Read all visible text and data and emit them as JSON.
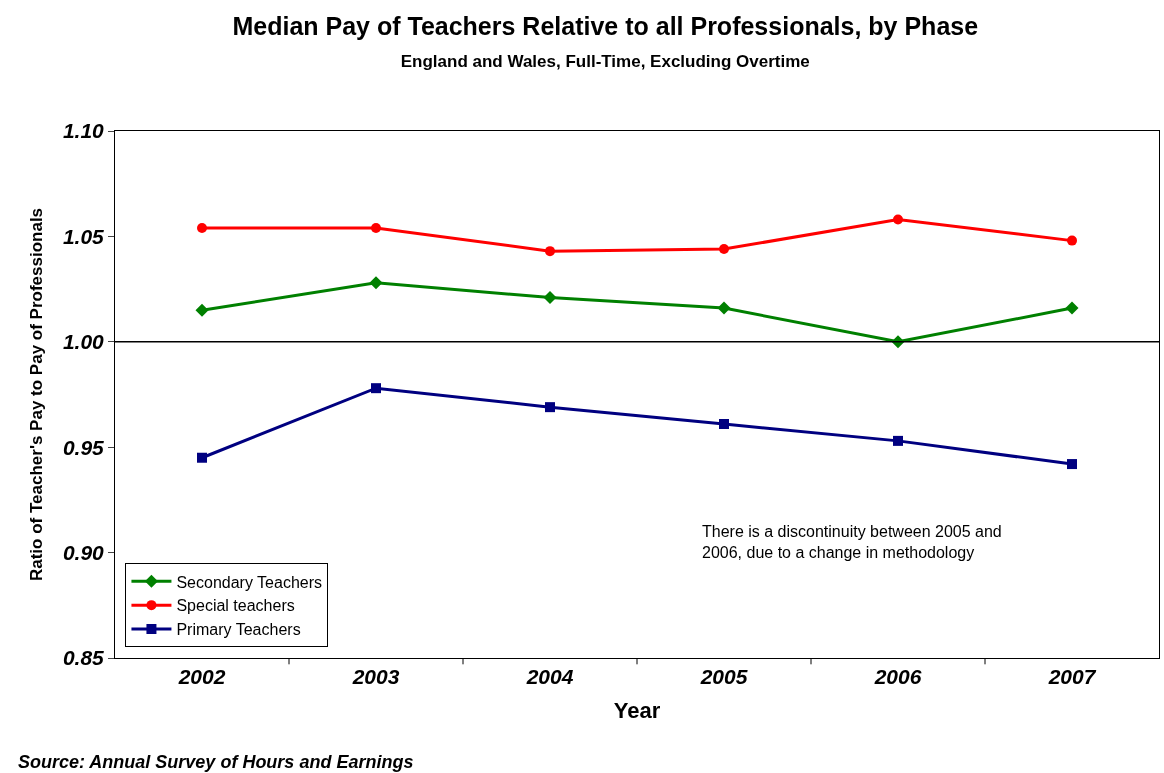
{
  "chart_data": {
    "type": "line",
    "title": "Median Pay of Teachers Relative to all Professionals, by Phase",
    "subtitle": "England and Wales, Full-Time, Excluding Overtime",
    "xlabel": "Year",
    "ylabel": "Ratio of Teacher's Pay to Pay of Professionals",
    "categories": [
      "2002",
      "2003",
      "2004",
      "2005",
      "2006",
      "2007"
    ],
    "series": [
      {
        "name": "Secondary Teachers",
        "color": "#008000",
        "marker": "diamond",
        "values": [
          1.015,
          1.028,
          1.021,
          1.016,
          1.0,
          1.016
        ]
      },
      {
        "name": "Special teachers",
        "color": "#ff0000",
        "marker": "circle",
        "values": [
          1.054,
          1.054,
          1.043,
          1.044,
          1.058,
          1.048
        ]
      },
      {
        "name": "Primary Teachers",
        "color": "#000080",
        "marker": "square",
        "values": [
          0.945,
          0.978,
          0.969,
          0.961,
          0.953,
          0.942
        ]
      }
    ],
    "ylim": [
      0.85,
      1.1
    ],
    "yticks": [
      {
        "value": 0.85,
        "label": "0.85"
      },
      {
        "value": 0.9,
        "label": "0.90"
      },
      {
        "value": 0.95,
        "label": "0.95"
      },
      {
        "value": 1.0,
        "label": "1.00"
      },
      {
        "value": 1.05,
        "label": "1.05"
      },
      {
        "value": 1.1,
        "label": "1.10"
      }
    ],
    "ref_lines": [
      {
        "axis": "y",
        "value": 1.0,
        "color": "#000000"
      }
    ],
    "annotations": [
      "There is a discontinuity between 2005 and 2006, due to a change in methodology",
      "Source: Annual Survey of Hours and Earnings"
    ],
    "legend": "bottom left"
  }
}
